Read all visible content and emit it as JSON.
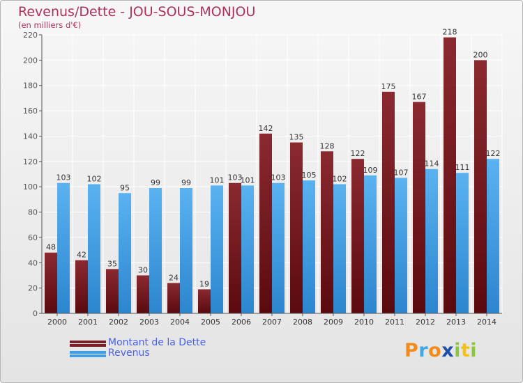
{
  "header": {
    "title": "Revenus/Dette - JOU-SOUS-MONJOU",
    "subtitle": "(en milliers d'€)"
  },
  "chart_data": {
    "type": "bar",
    "categories": [
      "2000",
      "2001",
      "2002",
      "2003",
      "2004",
      "2005",
      "2006",
      "2007",
      "2008",
      "2009",
      "2010",
      "2011",
      "2012",
      "2013",
      "2014"
    ],
    "series": [
      {
        "name": "Montant de la Dette",
        "color": "#7a1f26",
        "values": [
          48,
          42,
          35,
          30,
          24,
          19,
          103,
          142,
          135,
          128,
          122,
          175,
          167,
          218,
          200
        ]
      },
      {
        "name": "Revenus",
        "color": "#3f9fe6",
        "values": [
          103,
          102,
          95,
          99,
          99,
          101,
          101,
          103,
          105,
          102,
          109,
          107,
          114,
          111,
          122
        ]
      }
    ],
    "ylim": [
      0,
      220
    ],
    "yticks": [
      0,
      20,
      40,
      60,
      80,
      100,
      120,
      140,
      160,
      180,
      200,
      220
    ],
    "grid": true,
    "legend_position": "bottom-left"
  },
  "logo": {
    "letters": [
      "P",
      "r",
      "o",
      "x",
      "i",
      "t",
      "i"
    ],
    "colors": [
      "#f28a1c",
      "#3fa9e0",
      "#f28a1c",
      "#1f4fa8",
      "#8cc63f",
      "#f2c21c",
      "#8cc63f"
    ]
  }
}
